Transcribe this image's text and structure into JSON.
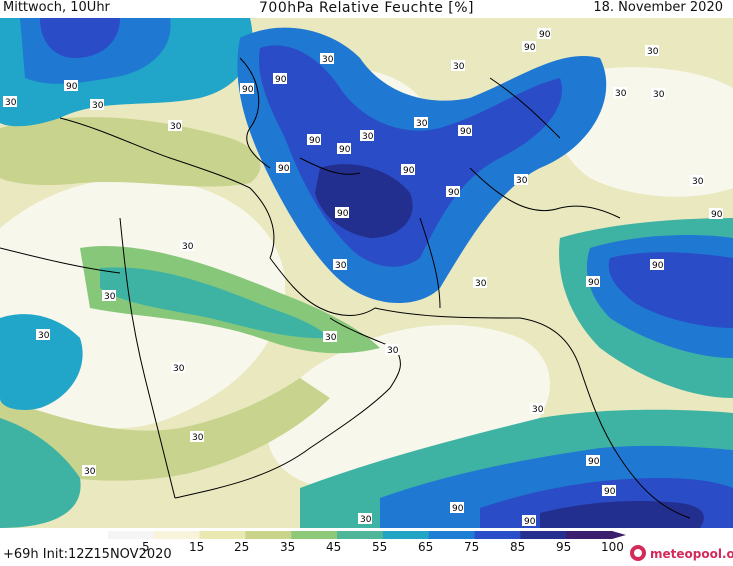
{
  "header": {
    "left": "Mittwoch, 10Uhr",
    "title": "700hPa Relative Feuchte [%]",
    "date": "18. November 2020"
  },
  "footer": {
    "run_info": "+69h Init:12Z15NOV2020",
    "logo_text": "meteopool.org"
  },
  "colorbar": {
    "labels": [
      "5",
      "15",
      "25",
      "35",
      "45",
      "55",
      "65",
      "75",
      "85",
      "95",
      "100"
    ],
    "colors": [
      "#f5f5f5",
      "#f8f4dc",
      "#e8e8b0",
      "#c9d48a",
      "#8ec97a",
      "#4fb69a",
      "#22a4c4",
      "#1e7ed4",
      "#2a4fc8",
      "#26308f",
      "#3a1f6e"
    ]
  },
  "map": {
    "isolines_labels": [
      "30",
      "90"
    ],
    "colors": {
      "dry": "#f7f7ec",
      "light": "#e9e8bf",
      "olive": "#c8d38d",
      "green": "#86c77a",
      "teal": "#3fb3a3",
      "cyan": "#21a5c8",
      "blue": "#1f79d3",
      "deep": "#2a4cc6",
      "navy": "#232f8e"
    }
  }
}
